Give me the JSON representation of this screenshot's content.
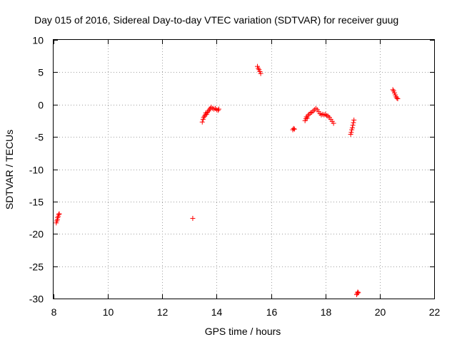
{
  "chart_data": {
    "type": "scatter",
    "title": "Day 015 of 2016, Sidereal Day-to-day VTEC variation (SDTVAR) for receiver guug",
    "xlabel": "GPS time / hours",
    "ylabel": "SDTVAR / TECUs",
    "xlim": [
      8,
      22
    ],
    "ylim": [
      -30,
      10
    ],
    "xticks": [
      8,
      10,
      12,
      14,
      16,
      18,
      20,
      22
    ],
    "yticks": [
      10,
      5,
      0,
      -5,
      -10,
      -15,
      -20,
      -25,
      -30
    ],
    "grid": true,
    "legend": "none",
    "marker": "plus",
    "colors": {
      "points": "#ff0000",
      "grid": "#a0a0a0",
      "axes": "#000000"
    },
    "points": [
      [
        8.1,
        -18.3
      ],
      [
        8.12,
        -18.0
      ],
      [
        8.14,
        -17.8
      ],
      [
        8.15,
        -17.5
      ],
      [
        8.17,
        -17.3
      ],
      [
        8.19,
        -17.0
      ],
      [
        8.21,
        -16.9
      ],
      [
        13.12,
        -17.6
      ],
      [
        13.47,
        -2.7
      ],
      [
        13.5,
        -2.3
      ],
      [
        13.52,
        -2.0
      ],
      [
        13.55,
        -1.8
      ],
      [
        13.58,
        -1.6
      ],
      [
        13.6,
        -1.3
      ],
      [
        13.63,
        -1.5
      ],
      [
        13.66,
        -1.2
      ],
      [
        13.7,
        -1.0
      ],
      [
        13.73,
        -0.8
      ],
      [
        13.76,
        -0.6
      ],
      [
        13.8,
        -0.4
      ],
      [
        13.85,
        -0.6
      ],
      [
        13.9,
        -0.7
      ],
      [
        13.95,
        -0.6
      ],
      [
        14.0,
        -0.8
      ],
      [
        14.05,
        -0.9
      ],
      [
        14.08,
        -0.7
      ],
      [
        15.5,
        5.9
      ],
      [
        15.53,
        5.6
      ],
      [
        15.56,
        5.4
      ],
      [
        15.59,
        5.1
      ],
      [
        15.62,
        4.8
      ],
      [
        16.8,
        -3.9
      ],
      [
        16.83,
        -3.7
      ],
      [
        16.86,
        -3.8
      ],
      [
        17.25,
        -2.5
      ],
      [
        17.28,
        -2.2
      ],
      [
        17.3,
        -1.9
      ],
      [
        17.33,
        -2.1
      ],
      [
        17.36,
        -1.7
      ],
      [
        17.4,
        -1.5
      ],
      [
        17.45,
        -1.3
      ],
      [
        17.5,
        -1.2
      ],
      [
        17.55,
        -1.0
      ],
      [
        17.6,
        -0.8
      ],
      [
        17.65,
        -0.6
      ],
      [
        17.7,
        -0.8
      ],
      [
        17.75,
        -1.1
      ],
      [
        17.8,
        -1.4
      ],
      [
        17.85,
        -1.6
      ],
      [
        17.9,
        -1.5
      ],
      [
        17.95,
        -1.6
      ],
      [
        18.0,
        -1.5
      ],
      [
        18.05,
        -1.7
      ],
      [
        18.1,
        -1.8
      ],
      [
        18.15,
        -2.0
      ],
      [
        18.2,
        -2.3
      ],
      [
        18.25,
        -2.6
      ],
      [
        18.3,
        -2.9
      ],
      [
        18.93,
        -4.6
      ],
      [
        18.95,
        -4.3
      ],
      [
        18.97,
        -3.9
      ],
      [
        18.99,
        -3.6
      ],
      [
        19.01,
        -3.2
      ],
      [
        19.03,
        -2.8
      ],
      [
        19.05,
        -2.4
      ],
      [
        19.15,
        -29.4
      ],
      [
        19.17,
        -29.2
      ],
      [
        19.19,
        -29.0
      ],
      [
        19.21,
        -29.1
      ],
      [
        20.48,
        2.3
      ],
      [
        20.51,
        2.1
      ],
      [
        20.54,
        1.8
      ],
      [
        20.57,
        1.5
      ],
      [
        20.6,
        1.2
      ],
      [
        20.63,
        1.0
      ],
      [
        20.66,
        0.9
      ]
    ]
  }
}
